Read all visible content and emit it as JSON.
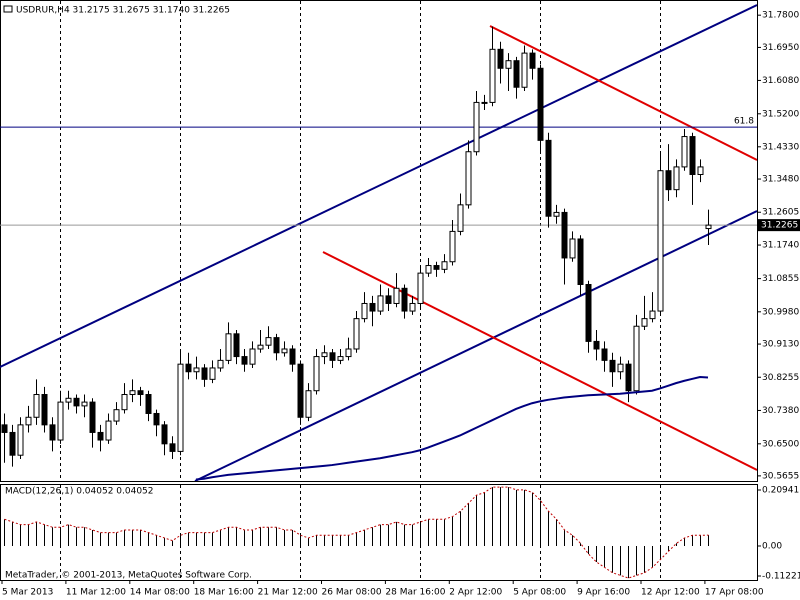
{
  "chart_data": {
    "type": "candlestick",
    "title": "USDRUR,H4  31.2175 31.2675 31.1740 31.2265",
    "macd_title": "MACD(12,26,1) 0.04052 0.04052",
    "footer": "MetaTrader, © 2001-2013, MetaQuotes Software Corp.",
    "bull_color": "#ffffff",
    "bear_color": "#000000",
    "ma_color": "#000080",
    "macd_color": "#000000",
    "signal_color": "#c00000",
    "categories": [
      "5 Mar 2013",
      "11 Mar 12:00",
      "14 Mar 08:00",
      "18 Mar 16:00",
      "21 Mar 12:00",
      "26 Mar 08:00",
      "28 Mar 16:00",
      "2 Apr 12:00",
      "5 Apr 08:00",
      "9 Apr 16:00",
      "12 Apr 12:00",
      "17 Apr 08:00"
    ],
    "ylim": [
      30.552,
      31.82
    ],
    "yticks": [
      {
        "value": 31.78,
        "label": "31.7800"
      },
      {
        "value": 31.695,
        "label": "31.6950"
      },
      {
        "value": 31.608,
        "label": "31.6080"
      },
      {
        "value": 31.52,
        "label": "31.5200"
      },
      {
        "value": 31.433,
        "label": "31.4330"
      },
      {
        "value": 31.348,
        "label": "31.3480"
      },
      {
        "value": 31.2605,
        "label": "31.2605"
      },
      {
        "value": 31.174,
        "label": "31.1740"
      },
      {
        "value": 31.0855,
        "label": "31.0855"
      },
      {
        "value": 30.998,
        "label": "30.9980"
      },
      {
        "value": 30.913,
        "label": "30.9130"
      },
      {
        "value": 30.8255,
        "label": "30.8255"
      },
      {
        "value": 30.738,
        "label": "30.7380"
      },
      {
        "value": 30.65,
        "label": "30.6500"
      },
      {
        "value": 30.5655,
        "label": "30.5655"
      }
    ],
    "macd_ylim": [
      -0.1272,
      0.2318
    ],
    "macd_ticks": [
      {
        "value": 0.20941,
        "label": "0.20941"
      },
      {
        "value": 0,
        "label": "0.00"
      },
      {
        "value": -0.11221,
        "label": "-0.11221"
      }
    ],
    "fibo": {
      "label": "61.8",
      "price": 31.485
    },
    "last_price": {
      "value": 31.2265,
      "label": "31.2265"
    },
    "candles": [
      [
        30.7,
        30.73,
        30.6,
        30.68
      ],
      [
        30.68,
        30.7,
        30.59,
        30.62
      ],
      [
        30.62,
        30.72,
        30.61,
        30.7
      ],
      [
        30.7,
        30.75,
        30.68,
        30.72
      ],
      [
        30.72,
        30.82,
        30.7,
        30.78
      ],
      [
        30.78,
        30.8,
        30.68,
        30.7
      ],
      [
        30.7,
        30.72,
        30.63,
        30.66
      ],
      [
        30.66,
        30.79,
        30.65,
        30.76
      ],
      [
        30.76,
        30.79,
        30.74,
        30.77
      ],
      [
        30.77,
        30.78,
        30.73,
        30.75
      ],
      [
        30.75,
        30.78,
        30.72,
        30.76
      ],
      [
        30.76,
        30.77,
        30.64,
        30.68
      ],
      [
        30.68,
        30.7,
        30.63,
        30.66
      ],
      [
        30.66,
        30.73,
        30.65,
        30.71
      ],
      [
        30.71,
        30.76,
        30.7,
        30.74
      ],
      [
        30.74,
        30.81,
        30.73,
        30.78
      ],
      [
        30.78,
        30.82,
        30.76,
        30.79
      ],
      [
        30.79,
        30.8,
        30.75,
        30.78
      ],
      [
        30.78,
        30.79,
        30.71,
        30.73
      ],
      [
        30.73,
        30.74,
        30.67,
        30.7
      ],
      [
        30.7,
        30.71,
        30.62,
        30.65
      ],
      [
        30.65,
        30.67,
        30.61,
        30.63
      ],
      [
        30.63,
        30.9,
        30.62,
        30.86
      ],
      [
        30.86,
        30.89,
        30.82,
        30.84
      ],
      [
        30.84,
        30.88,
        30.82,
        30.85
      ],
      [
        30.85,
        30.86,
        30.8,
        30.82
      ],
      [
        30.82,
        30.87,
        30.81,
        30.85
      ],
      [
        30.85,
        30.9,
        30.84,
        30.87
      ],
      [
        30.87,
        30.97,
        30.86,
        30.94
      ],
      [
        30.94,
        30.95,
        30.86,
        30.88
      ],
      [
        30.88,
        30.9,
        30.84,
        30.86
      ],
      [
        30.86,
        30.92,
        30.85,
        30.9
      ],
      [
        30.9,
        30.95,
        30.89,
        30.91
      ],
      [
        30.91,
        30.96,
        30.9,
        30.93
      ],
      [
        30.93,
        30.94,
        30.87,
        30.89
      ],
      [
        30.89,
        30.92,
        30.88,
        30.9
      ],
      [
        30.9,
        30.91,
        30.84,
        30.86
      ],
      [
        30.86,
        30.87,
        30.7,
        30.72
      ],
      [
        30.72,
        30.81,
        30.71,
        30.79
      ],
      [
        30.79,
        30.9,
        30.78,
        30.88
      ],
      [
        30.88,
        30.91,
        30.86,
        30.89
      ],
      [
        30.89,
        30.9,
        30.85,
        30.87
      ],
      [
        30.87,
        30.9,
        30.86,
        30.88
      ],
      [
        30.88,
        30.93,
        30.87,
        30.9
      ],
      [
        30.9,
        31.0,
        30.89,
        30.98
      ],
      [
        30.98,
        31.05,
        30.97,
        31.02
      ],
      [
        31.02,
        31.04,
        30.96,
        31.0
      ],
      [
        31.0,
        31.07,
        30.99,
        31.04
      ],
      [
        31.04,
        31.06,
        31.0,
        31.02
      ],
      [
        31.02,
        31.1,
        31.01,
        31.06
      ],
      [
        31.06,
        31.07,
        30.98,
        31.0
      ],
      [
        31.0,
        31.04,
        30.99,
        31.02
      ],
      [
        31.02,
        31.12,
        31.01,
        31.1
      ],
      [
        31.1,
        31.14,
        31.09,
        31.12
      ],
      [
        31.12,
        31.13,
        31.09,
        31.11
      ],
      [
        31.11,
        31.15,
        31.1,
        31.13
      ],
      [
        31.13,
        31.24,
        31.12,
        31.21
      ],
      [
        31.21,
        31.31,
        31.2,
        31.28
      ],
      [
        31.28,
        31.45,
        31.27,
        31.42
      ],
      [
        31.42,
        31.58,
        31.41,
        31.55
      ],
      [
        31.55,
        31.57,
        31.53,
        31.55
      ],
      [
        31.55,
        31.75,
        31.54,
        31.69
      ],
      [
        31.69,
        31.71,
        31.6,
        31.64
      ],
      [
        31.64,
        31.68,
        31.58,
        31.66
      ],
      [
        31.66,
        31.67,
        31.56,
        31.59
      ],
      [
        31.59,
        31.7,
        31.58,
        31.68
      ],
      [
        31.68,
        31.69,
        31.61,
        31.64
      ],
      [
        31.64,
        31.65,
        31.42,
        31.45
      ],
      [
        31.45,
        31.47,
        31.22,
        31.25
      ],
      [
        31.25,
        31.28,
        31.23,
        31.26
      ],
      [
        31.26,
        31.27,
        31.07,
        31.14
      ],
      [
        31.14,
        31.21,
        31.13,
        31.19
      ],
      [
        31.19,
        31.2,
        31.04,
        31.07
      ],
      [
        31.07,
        31.08,
        30.89,
        30.92
      ],
      [
        30.92,
        30.95,
        30.87,
        30.9
      ],
      [
        30.9,
        30.92,
        30.84,
        30.87
      ],
      [
        30.87,
        30.89,
        30.8,
        30.84
      ],
      [
        30.84,
        30.88,
        30.82,
        30.86
      ],
      [
        30.86,
        30.87,
        30.76,
        30.79
      ],
      [
        30.79,
        30.99,
        30.78,
        30.96
      ],
      [
        30.96,
        31.04,
        30.95,
        30.98
      ],
      [
        30.98,
        31.05,
        30.97,
        31.0
      ],
      [
        31.0,
        31.42,
        30.99,
        31.37
      ],
      [
        31.37,
        31.44,
        31.29,
        31.32
      ],
      [
        31.32,
        31.4,
        31.3,
        31.38
      ],
      [
        31.38,
        31.48,
        31.37,
        31.46
      ],
      [
        31.46,
        31.47,
        31.28,
        31.36
      ],
      [
        31.36,
        31.4,
        31.34,
        31.38
      ],
      [
        31.2175,
        31.2675,
        31.174,
        31.2265
      ]
    ],
    "ma": [
      null,
      null,
      null,
      null,
      null,
      null,
      null,
      null,
      null,
      null,
      null,
      null,
      null,
      null,
      null,
      null,
      null,
      null,
      null,
      null,
      null,
      null,
      null,
      null,
      30.556,
      30.558,
      30.562,
      30.565,
      30.568,
      30.57,
      30.572,
      30.574,
      30.576,
      30.578,
      30.58,
      30.582,
      30.584,
      30.586,
      30.588,
      30.59,
      30.592,
      30.594,
      30.597,
      30.6,
      30.603,
      30.606,
      30.609,
      30.612,
      30.616,
      30.62,
      30.624,
      30.628,
      30.633,
      30.64,
      30.648,
      30.656,
      30.664,
      30.672,
      30.682,
      30.692,
      30.702,
      30.712,
      30.722,
      30.732,
      30.742,
      30.75,
      30.757,
      30.762,
      30.766,
      30.769,
      30.772,
      30.774,
      30.776,
      30.778,
      30.779,
      30.78,
      30.781,
      30.782,
      30.784,
      30.786,
      30.788,
      30.79,
      30.796,
      30.803,
      30.81,
      30.816,
      30.821,
      30.826,
      30.825
    ],
    "macd": [
      0.1,
      0.09,
      0.08,
      0.08,
      0.09,
      0.08,
      0.07,
      0.07,
      0.08,
      0.07,
      0.07,
      0.06,
      0.05,
      0.05,
      0.05,
      0.06,
      0.06,
      0.06,
      0.05,
      0.04,
      0.03,
      0.02,
      0.04,
      0.05,
      0.05,
      0.05,
      0.05,
      0.06,
      0.07,
      0.07,
      0.06,
      0.06,
      0.07,
      0.07,
      0.07,
      0.06,
      0.06,
      0.04,
      0.03,
      0.04,
      0.04,
      0.04,
      0.04,
      0.04,
      0.05,
      0.06,
      0.07,
      0.08,
      0.08,
      0.09,
      0.08,
      0.08,
      0.09,
      0.1,
      0.1,
      0.1,
      0.11,
      0.13,
      0.16,
      0.19,
      0.2,
      0.22,
      0.22,
      0.22,
      0.21,
      0.21,
      0.2,
      0.17,
      0.13,
      0.1,
      0.06,
      0.04,
      0.01,
      -0.03,
      -0.06,
      -0.08,
      -0.1,
      -0.11,
      -0.12,
      -0.11,
      -0.1,
      -0.08,
      -0.05,
      -0.02,
      0.01,
      0.03,
      0.04,
      0.04,
      0.04052
    ]
  }
}
